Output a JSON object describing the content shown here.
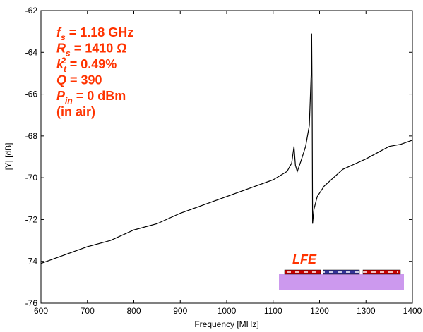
{
  "chart_data": {
    "type": "line",
    "x_label": "Frequency [MHz]",
    "y_label": "|Y| [dB]",
    "x": [
      600,
      650,
      700,
      750,
      800,
      850,
      900,
      950,
      1000,
      1050,
      1100,
      1130,
      1140,
      1145,
      1148,
      1152,
      1160,
      1170,
      1178,
      1182,
      1183,
      1184,
      1185,
      1188,
      1195,
      1210,
      1250,
      1300,
      1325,
      1350,
      1375,
      1400
    ],
    "values": [
      -74.1,
      -73.7,
      -73.3,
      -73.0,
      -72.5,
      -72.2,
      -71.7,
      -71.3,
      -70.9,
      -70.5,
      -70.1,
      -69.7,
      -69.3,
      -68.5,
      -69.4,
      -69.7,
      -69.2,
      -68.5,
      -67.5,
      -65,
      -63.1,
      -66,
      -72.2,
      -71.5,
      -70.9,
      -70.4,
      -69.6,
      -69.1,
      -68.8,
      -68.5,
      -68.4,
      -68.2
    ],
    "color": "#000000",
    "xlim": [
      600,
      1400
    ],
    "xticks": [
      600,
      700,
      800,
      900,
      1000,
      1100,
      1200,
      1300,
      1400
    ],
    "ylim": [
      -76,
      -62
    ],
    "yticks": [
      -76,
      -74,
      -72,
      -70,
      -68,
      -66,
      -64,
      -62
    ],
    "annotation_color": "#ff3300",
    "annotations": [
      {
        "symbol": "f",
        "subscript": "s",
        "text": " = 1.18 GHz"
      },
      {
        "symbol": "R",
        "subscript": "s",
        "text": " = 1410 Ω"
      },
      {
        "symbol": "k",
        "subscript": "t",
        "superscript": "2",
        "text": " = 0.49%"
      },
      {
        "symbol": "Q",
        "text": " = 390"
      },
      {
        "symbol": "P",
        "subscript": "in",
        "text": " = 0 dBm"
      },
      {
        "text": "(in air)"
      }
    ],
    "inset_label": "LFE"
  }
}
